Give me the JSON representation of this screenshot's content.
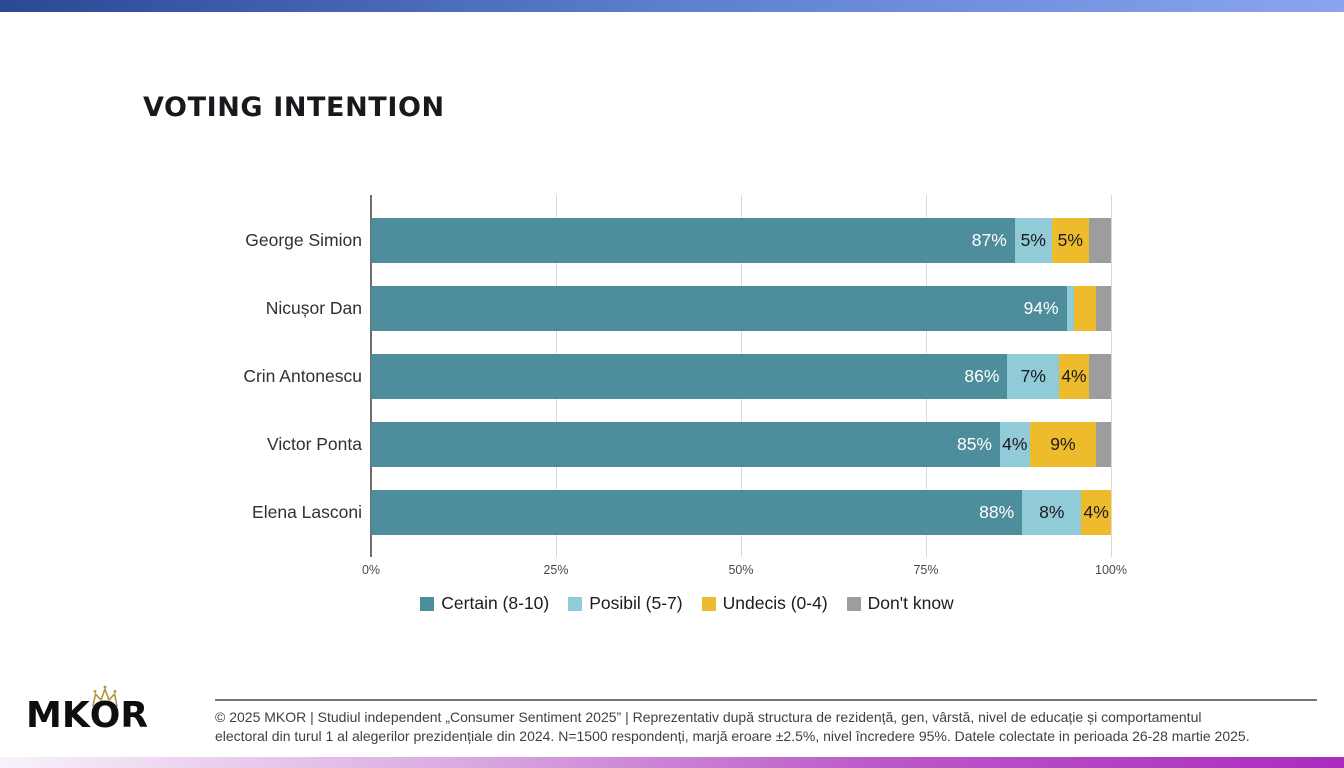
{
  "header": {
    "title": "VOTING INTENTION"
  },
  "chart_data": {
    "type": "bar",
    "orientation": "horizontal_stacked",
    "title": "VOTING INTENTION",
    "categories": [
      "George Simion",
      "Nicușor Dan",
      "Crin Antonescu",
      "Victor Ponta",
      "Elena Lasconi"
    ],
    "series": [
      {
        "name": "Certain (8-10)",
        "color": "#4e8d9b",
        "values": [
          87,
          94,
          86,
          85,
          88
        ]
      },
      {
        "name": "Posibil (5-7)",
        "color": "#90cbd7",
        "values": [
          5,
          1,
          7,
          4,
          8
        ]
      },
      {
        "name": "Undecis (0-4)",
        "color": "#eebb2d",
        "values": [
          5,
          3,
          4,
          9,
          4
        ]
      },
      {
        "name": "Don't know",
        "color": "#9d9d9d",
        "values": [
          3,
          2,
          3,
          2,
          0
        ]
      }
    ],
    "bar_labels": [
      [
        "87%",
        "5%",
        "5%",
        ""
      ],
      [
        "94%",
        "",
        "",
        ""
      ],
      [
        "86%",
        "7%",
        "4%",
        ""
      ],
      [
        "85%",
        "4%",
        "9%",
        ""
      ],
      [
        "88%",
        "8%",
        "4%",
        ""
      ]
    ],
    "xlim": [
      0,
      100
    ],
    "x_ticks": [
      "0%",
      "25%",
      "50%",
      "75%",
      "100%"
    ],
    "grid": "vertical",
    "legend_position": "bottom"
  },
  "footer": {
    "logo_text_mk": "MK",
    "logo_text_o": "O",
    "logo_text_r": "R",
    "line1": "© 2025 MKOR | Studiul independent „Consumer Sentiment 2025” | Reprezentativ după structura de rezidență, gen, vârstă, nivel de educație și comportamentul",
    "line2": "electoral din turul 1 al alegerilor prezidențiale din 2024. N=1500 respondenți, marjă eroare ±2.5%, nivel încredere 95%. Datele colectate in perioada 26-28 martie 2025."
  },
  "colors": {
    "top_gradient": [
      "#2b4894",
      "#5d7fd0",
      "#8ba4ef"
    ],
    "bottom_gradient": [
      "#f8f2fa",
      "#d9a8e0",
      "#bb5ac8",
      "#aa2cbd"
    ],
    "crown_gold": "#b3913c",
    "gridline": "#d9d9d9",
    "axis_line": "#6e6e6e"
  }
}
